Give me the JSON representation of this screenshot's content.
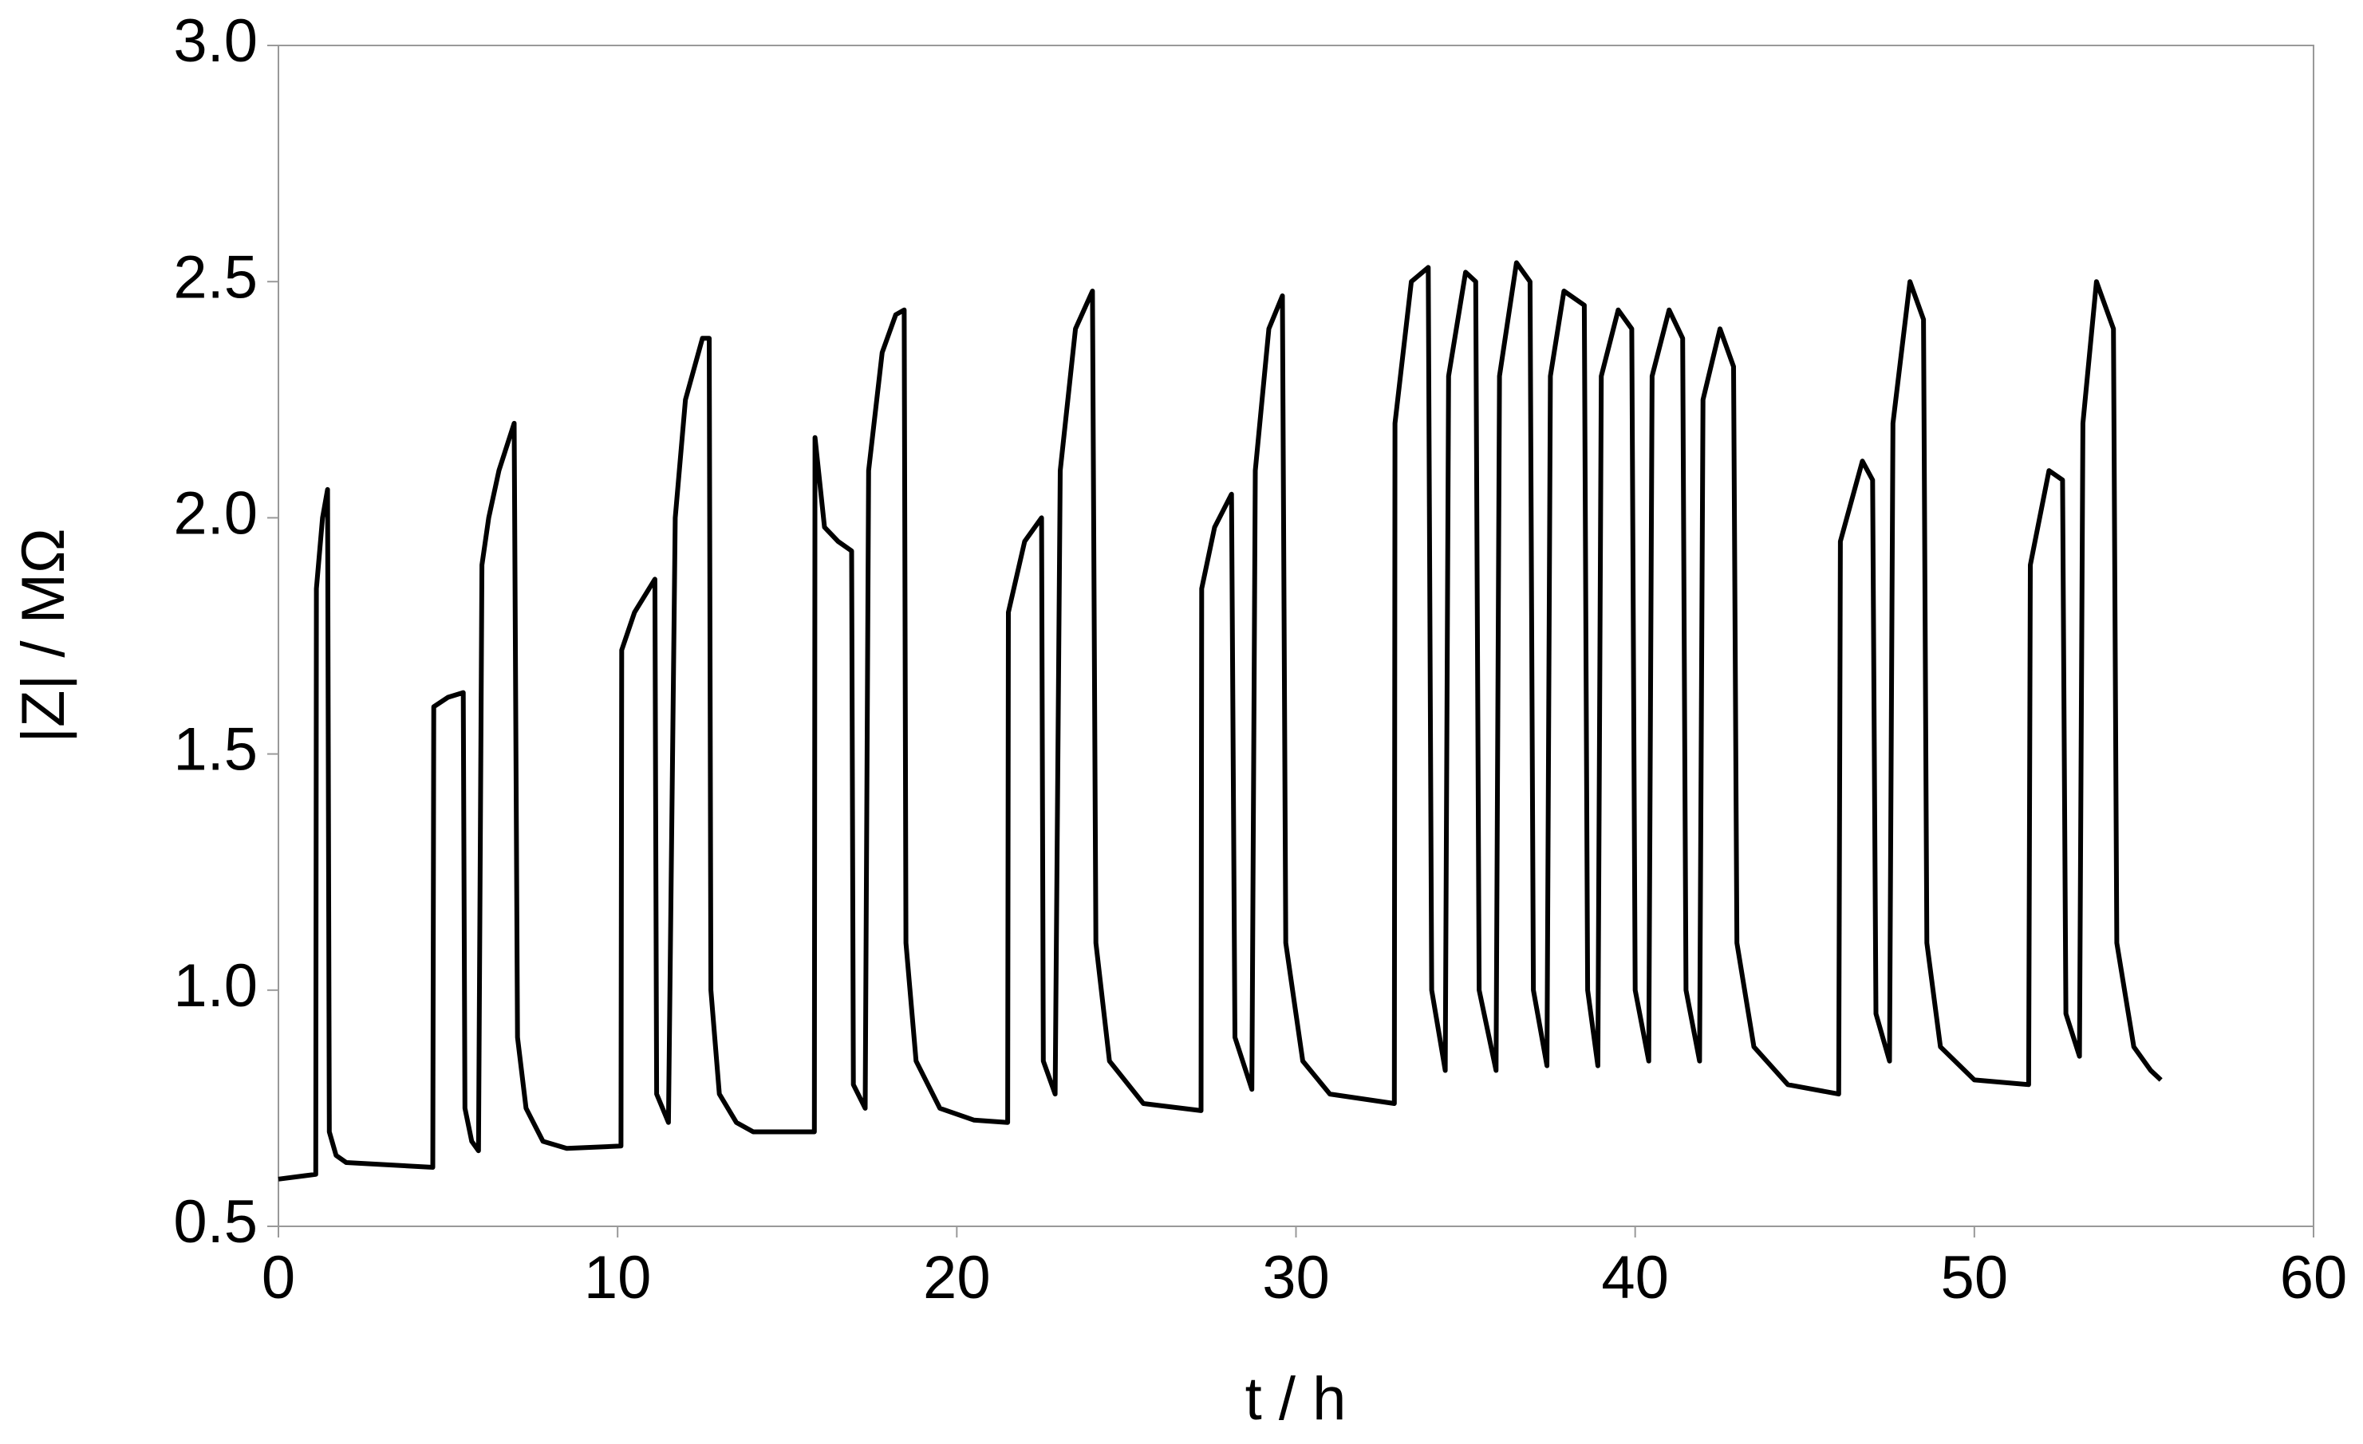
{
  "chart_data": {
    "type": "line",
    "xlabel": "t / h",
    "ylabel": "|Z| / MΩ",
    "xlim": [
      0,
      60
    ],
    "xticks": [
      0,
      10,
      20,
      30,
      40,
      50,
      60
    ],
    "ylim": [
      0.5,
      3.0
    ],
    "yticks": [
      0.5,
      {
        "value": 1,
        "label": "1.0"
      },
      1.5,
      {
        "value": 2,
        "label": "2.0"
      },
      2.5,
      {
        "value": 3,
        "label": "3.0"
      }
    ],
    "x": [
      0,
      1.1,
      1.12,
      1.3,
      1.45,
      1.5,
      1.7,
      2,
      4.55,
      4.58,
      5.0,
      5.45,
      5.5,
      5.7,
      5.9,
      6.0,
      6.2,
      6.5,
      6.95,
      7.05,
      7.3,
      7.8,
      8.5,
      10.1,
      10.12,
      10.5,
      11.1,
      11.15,
      11.5,
      11.7,
      12.0,
      12.5,
      12.7,
      12.75,
      13.0,
      13.5,
      14.0,
      15.8,
      15.82,
      16.1,
      16.5,
      16.9,
      16.95,
      17.3,
      17.4,
      17.8,
      18.2,
      18.45,
      18.5,
      18.8,
      19.5,
      20.5,
      21.5,
      21.52,
      22.0,
      22.5,
      22.55,
      22.9,
      23.05,
      23.5,
      24.0,
      24.1,
      24.5,
      25.5,
      27.2,
      27.22,
      27.6,
      28.1,
      28.2,
      28.7,
      28.8,
      29.2,
      29.6,
      29.7,
      30.2,
      31.0,
      32.9,
      32.92,
      33.4,
      33.9,
      34.0,
      34.4,
      34.5,
      35.0,
      35.3,
      35.4,
      35.9,
      36.0,
      36.5,
      36.9,
      37.0,
      37.4,
      37.5,
      37.9,
      38.5,
      38.6,
      38.9,
      39.0,
      39.5,
      39.9,
      40.0,
      40.4,
      40.5,
      41.0,
      41.4,
      41.5,
      41.9,
      42.0,
      42.5,
      42.9,
      43.0,
      43.5,
      44.5,
      46.0,
      46.05,
      46.7,
      47.0,
      47.1,
      47.5,
      47.6,
      48.1,
      48.5,
      48.6,
      49.0,
      50.0,
      51.6,
      51.65,
      52.2,
      52.6,
      52.7,
      53.1,
      53.2,
      53.6,
      54.1,
      54.2,
      54.7,
      55.2,
      55.5
    ],
    "series": [
      {
        "name": "|Z|",
        "color": "#000000",
        "values": [
          0.6,
          0.61,
          1.85,
          2.0,
          2.06,
          0.7,
          0.65,
          0.635,
          0.625,
          1.6,
          1.62,
          1.63,
          0.75,
          0.68,
          0.66,
          1.9,
          2.0,
          2.1,
          2.2,
          0.9,
          0.75,
          0.68,
          0.665,
          0.67,
          1.72,
          1.8,
          1.87,
          0.78,
          0.72,
          2.0,
          2.25,
          2.38,
          2.38,
          1.0,
          0.78,
          0.72,
          0.7,
          0.7,
          2.17,
          1.98,
          1.95,
          1.93,
          0.8,
          0.75,
          2.1,
          2.35,
          2.43,
          2.44,
          1.1,
          0.85,
          0.75,
          0.725,
          0.72,
          1.8,
          1.95,
          2.0,
          0.85,
          0.78,
          2.1,
          2.4,
          2.48,
          1.1,
          0.85,
          0.76,
          0.745,
          1.85,
          1.98,
          2.05,
          0.9,
          0.79,
          2.1,
          2.4,
          2.47,
          1.1,
          0.85,
          0.78,
          0.76,
          2.2,
          2.5,
          2.53,
          1.0,
          0.83,
          2.3,
          2.52,
          2.5,
          1.0,
          0.83,
          2.3,
          2.54,
          2.5,
          1.0,
          0.84,
          2.3,
          2.48,
          2.45,
          1.0,
          0.84,
          2.3,
          2.44,
          2.4,
          1.0,
          0.85,
          2.3,
          2.44,
          2.38,
          1.0,
          0.85,
          2.25,
          2.4,
          2.32,
          1.1,
          0.88,
          0.8,
          0.78,
          1.95,
          2.12,
          2.08,
          0.95,
          0.85,
          2.2,
          2.5,
          2.42,
          1.1,
          0.88,
          0.81,
          0.8,
          1.9,
          2.1,
          2.08,
          0.95,
          0.86,
          2.2,
          2.5,
          2.4,
          1.1,
          0.88,
          0.83,
          0.81
        ]
      }
    ]
  }
}
